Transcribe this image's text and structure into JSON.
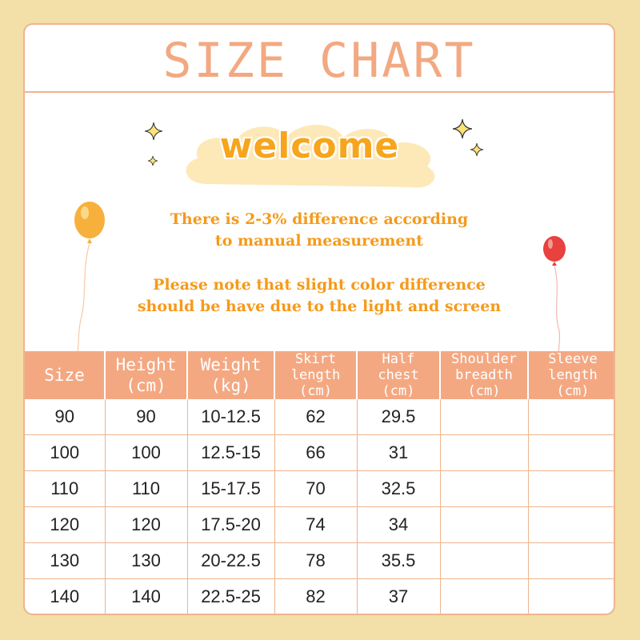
{
  "title": "SIZE CHART",
  "welcome": "welcome",
  "notes": [
    "There is 2-3% difference according",
    "to manual measurement",
    "Please note that slight color difference",
    "should be have due to the light and screen"
  ],
  "table": {
    "headers": [
      [
        "Size"
      ],
      [
        "Height",
        "(cm)"
      ],
      [
        "Weight",
        "(kg)"
      ],
      [
        "Skirt",
        "length",
        "(cm)"
      ],
      [
        "Half",
        "chest",
        "(cm)"
      ],
      [
        "Shoulder",
        "breadth",
        "(cm)"
      ],
      [
        "Sleeve",
        "length",
        "(cm)"
      ]
    ],
    "rows": [
      [
        "90",
        "90",
        "10-12.5",
        "62",
        "29.5",
        "",
        ""
      ],
      [
        "100",
        "100",
        "12.5-15",
        "66",
        "31",
        "",
        ""
      ],
      [
        "110",
        "110",
        "15-17.5",
        "70",
        "32.5",
        "",
        ""
      ],
      [
        "120",
        "120",
        "17.5-20",
        "74",
        "34",
        "",
        ""
      ],
      [
        "130",
        "130",
        "20-22.5",
        "78",
        "35.5",
        "",
        ""
      ],
      [
        "140",
        "140",
        "22.5-25",
        "82",
        "37",
        "",
        ""
      ]
    ]
  },
  "colors": {
    "background": "#f3dfa8",
    "accent": "#f4a882",
    "welcome": "#f6a51c",
    "note": "#f59a1a"
  },
  "icons": [
    "sparkle-icon",
    "orange-balloon-icon",
    "red-balloon-icon",
    "cloud-shape"
  ]
}
